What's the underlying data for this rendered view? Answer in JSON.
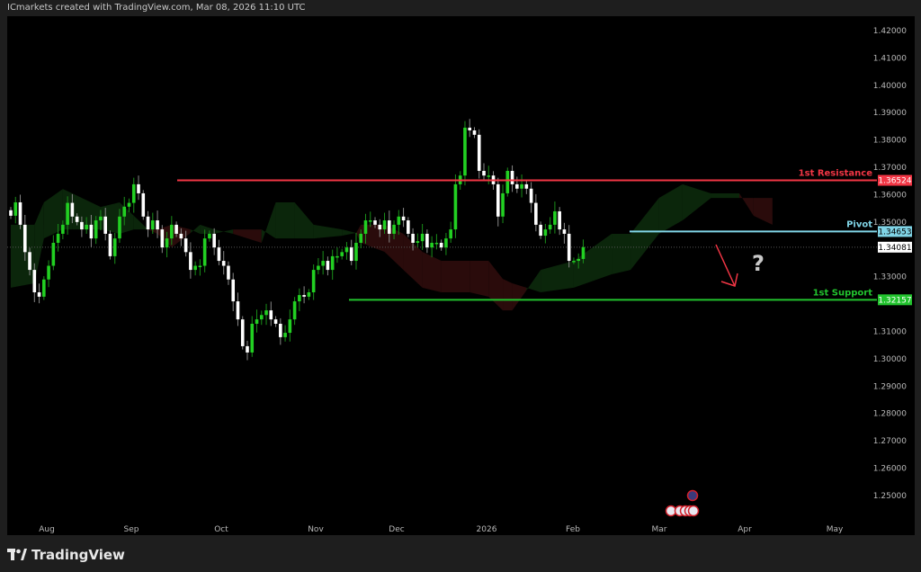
{
  "header": {
    "attribution": "ICmarkets created with TradingView.com, Mar 08, 2026 11:10 UTC"
  },
  "footer": {
    "logo_text": "TradingView"
  },
  "colors": {
    "background": "#000000",
    "bezel": "#1e1e1e",
    "up_candle": "#22d022",
    "down_candle": "#ffffff",
    "resistance": "#f23645",
    "pivot": "#80d4e6",
    "support": "#22c32e",
    "cloud_bull": "#0b260b",
    "cloud_bear": "#2a0b0b",
    "arrow": "#f23645",
    "question": "#c8c8c8"
  },
  "chart_data": {
    "type": "candlestick",
    "ylim": [
      1.243,
      1.425
    ],
    "y_ticks": [
      "1.42000",
      "1.41000",
      "1.40000",
      "1.39000",
      "1.38000",
      "1.37000",
      "1.36000",
      "1.35000",
      "1.34000",
      "1.33000",
      "1.32000",
      "1.31000",
      "1.30000",
      "1.29000",
      "1.28000",
      "1.27000",
      "1.26000",
      "1.25000"
    ],
    "x_ticks": [
      "Aug",
      "Sep",
      "Oct",
      "Nov",
      "Dec",
      "2026",
      "Feb",
      "Mar",
      "Apr",
      "May"
    ],
    "closes": [
      1.3523,
      1.3572,
      1.349,
      1.339,
      1.3325,
      1.3243,
      1.3227,
      1.329,
      1.334,
      1.3424,
      1.3457,
      1.349,
      1.357,
      1.352,
      1.35,
      1.3473,
      1.349,
      1.344,
      1.3506,
      1.352,
      1.3457,
      1.3375,
      1.344,
      1.352,
      1.3556,
      1.357,
      1.3638,
      1.3605,
      1.352,
      1.3473,
      1.3506,
      1.3473,
      1.3407,
      1.344,
      1.349,
      1.3457,
      1.344,
      1.339,
      1.3325,
      1.334,
      1.334,
      1.344,
      1.3457,
      1.3407,
      1.3358,
      1.334,
      1.329,
      1.321,
      1.3144,
      1.3046,
      1.3023,
      1.3128,
      1.3144,
      1.316,
      1.3177,
      1.3144,
      1.3128,
      1.3079,
      1.3095,
      1.3144,
      1.321,
      1.3233,
      1.3227,
      1.3243,
      1.3325,
      1.334,
      1.3358,
      1.3325,
      1.3375,
      1.3375,
      1.339,
      1.3407,
      1.3358,
      1.3424,
      1.3457,
      1.3506,
      1.3506,
      1.349,
      1.3473,
      1.3506,
      1.3457,
      1.349,
      1.352,
      1.3506,
      1.3457,
      1.3424,
      1.343,
      1.3457,
      1.3407,
      1.3424,
      1.3424,
      1.3407,
      1.344,
      1.3473,
      1.3638,
      1.367,
      1.3845,
      1.3835,
      1.3819,
      1.3687,
      1.367,
      1.367,
      1.3638,
      1.352,
      1.3605,
      1.3687,
      1.3638,
      1.3622,
      1.3638,
      1.3622,
      1.357,
      1.349,
      1.345,
      1.3473,
      1.349,
      1.3539,
      1.3473,
      1.3457,
      1.3358,
      1.3358,
      1.3365,
      1.34081
    ],
    "cloud": [
      [
        0,
        1.349,
        1.326
      ],
      [
        5,
        1.349,
        1.3276
      ],
      [
        7,
        1.3572,
        1.344
      ],
      [
        11,
        1.3621,
        1.3473
      ],
      [
        13,
        1.3605,
        1.3473
      ],
      [
        19,
        1.3555,
        1.3473
      ],
      [
        23,
        1.3572,
        1.3457
      ],
      [
        26,
        1.3523,
        1.3473
      ],
      [
        29,
        1.3473,
        1.3473
      ],
      [
        31,
        1.3457,
        1.3473
      ],
      [
        34,
        1.3407,
        1.349
      ],
      [
        38,
        1.346,
        1.3473
      ],
      [
        40,
        1.349,
        1.3457
      ],
      [
        43,
        1.3473,
        1.3457
      ],
      [
        47,
        1.3457,
        1.3473
      ],
      [
        53,
        1.3424,
        1.3473
      ],
      [
        56,
        1.3572,
        1.344
      ],
      [
        60,
        1.3572,
        1.344
      ],
      [
        64,
        1.349,
        1.344
      ],
      [
        70,
        1.3473,
        1.345
      ],
      [
        73,
        1.346,
        1.346
      ],
      [
        74,
        1.3424,
        1.349
      ],
      [
        79,
        1.3391,
        1.349
      ],
      [
        83,
        1.3325,
        1.3457
      ],
      [
        87,
        1.326,
        1.3391
      ],
      [
        91,
        1.3243,
        1.3358
      ],
      [
        97,
        1.3243,
        1.3358
      ],
      [
        101,
        1.3227,
        1.3358
      ],
      [
        104,
        1.3177,
        1.3292
      ],
      [
        106,
        1.3177,
        1.3276
      ],
      [
        109,
        1.325,
        1.326
      ],
      [
        112,
        1.3325,
        1.3243
      ],
      [
        119,
        1.3358,
        1.326
      ],
      [
        127,
        1.3457,
        1.3309
      ],
      [
        131,
        1.3457,
        1.3325
      ],
      [
        137,
        1.3588,
        1.3457
      ],
      [
        142,
        1.3638,
        1.3506
      ],
      [
        148,
        1.3605,
        1.3588
      ],
      [
        154,
        1.3605,
        1.3588
      ],
      [
        157,
        1.3523,
        1.3588
      ],
      [
        161,
        1.349,
        1.3588
      ]
    ],
    "levels": [
      {
        "label": "1st Resistance",
        "value": 1.36524,
        "tag": "1.36524",
        "color": "#f23645"
      },
      {
        "label": "Pivot",
        "value": 1.34653,
        "tag": "1.34653",
        "color": "#80d4e6"
      },
      {
        "label": "1st Support",
        "value": 1.32157,
        "tag": "1.32157",
        "color": "#22c32e"
      }
    ],
    "last_price": {
      "value": 1.34081,
      "tag": "1.34081"
    },
    "annotations": {
      "arrow": "down",
      "question_mark": "?"
    },
    "events": [
      "uk-flag",
      "us-flag",
      "us-flag",
      "us-flag",
      "us-flag",
      "us-flag"
    ]
  }
}
